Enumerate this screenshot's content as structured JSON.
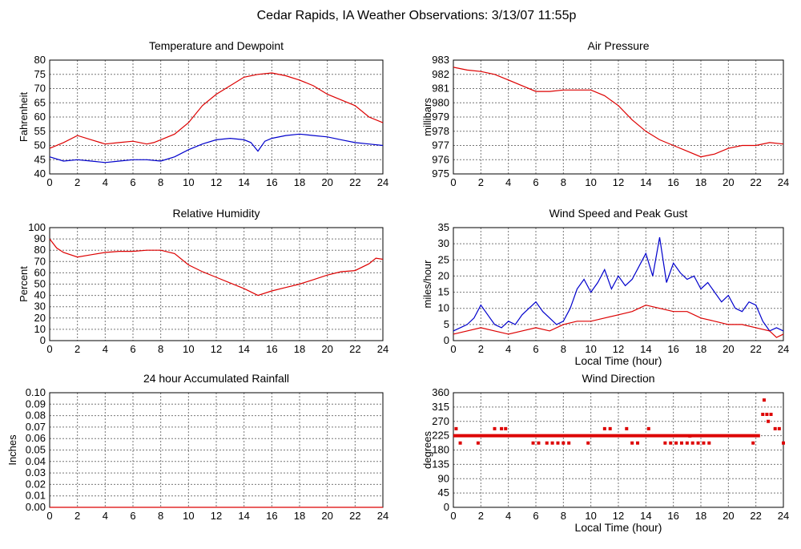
{
  "page_title": "Cedar Rapids, IA Weather Observations: 3/13/07 11:55p",
  "colors": {
    "red": "#dd0000",
    "blue": "#0000cc",
    "grid": "#777777"
  },
  "chart_data": [
    {
      "id": "temp",
      "type": "line",
      "title": "Temperature and Dewpoint",
      "xlabel": "",
      "ylabel": "Fahrenheit",
      "xlim": [
        0,
        24
      ],
      "ylim": [
        40,
        80
      ],
      "xticks": [
        0,
        2,
        4,
        6,
        8,
        10,
        12,
        14,
        16,
        18,
        20,
        22,
        24
      ],
      "yticks": [
        40,
        45,
        50,
        55,
        60,
        65,
        70,
        75,
        80
      ],
      "grid": true,
      "series": [
        {
          "color": "#dd0000",
          "x": [
            0,
            1,
            2,
            3,
            4,
            5,
            6,
            7,
            7.5,
            8,
            9,
            10,
            11,
            12,
            13,
            14,
            15,
            16,
            17,
            18,
            19,
            20,
            21,
            22,
            23,
            24
          ],
          "y": [
            49,
            51,
            53.5,
            52,
            50.5,
            51,
            51.5,
            50.5,
            51,
            52,
            54,
            58,
            64,
            68,
            71,
            74,
            75,
            75.5,
            74.5,
            73,
            71,
            68,
            66,
            64,
            60,
            58
          ]
        },
        {
          "color": "#0000cc",
          "x": [
            0,
            1,
            2,
            3,
            4,
            5,
            6,
            7,
            8,
            9,
            10,
            11,
            12,
            13,
            14,
            14.5,
            15,
            15.5,
            16,
            17,
            18,
            19,
            20,
            21,
            22,
            23,
            24
          ],
          "y": [
            46,
            44.5,
            45,
            44.5,
            44,
            44.5,
            45,
            45,
            44.5,
            46,
            48.5,
            50.5,
            52,
            52.5,
            52,
            51,
            48,
            51.5,
            52.5,
            53.5,
            54,
            53.5,
            53,
            52,
            51,
            50.5,
            50
          ]
        }
      ]
    },
    {
      "id": "pressure",
      "type": "line",
      "title": "Air Pressure",
      "xlabel": "",
      "ylabel": "millibars",
      "xlim": [
        0,
        24
      ],
      "ylim": [
        975,
        983
      ],
      "xticks": [
        0,
        2,
        4,
        6,
        8,
        10,
        12,
        14,
        16,
        18,
        20,
        22,
        24
      ],
      "yticks": [
        975,
        976,
        977,
        978,
        979,
        980,
        981,
        982,
        983
      ],
      "grid": true,
      "series": [
        {
          "color": "#dd0000",
          "x": [
            0,
            1,
            2,
            3,
            4,
            5,
            6,
            7,
            8,
            9,
            10,
            11,
            12,
            13,
            14,
            15,
            16,
            17,
            18,
            19,
            20,
            21,
            22,
            23,
            24
          ],
          "y": [
            982.5,
            982.3,
            982.2,
            982.0,
            981.6,
            981.2,
            980.8,
            980.8,
            980.9,
            980.9,
            980.9,
            980.5,
            979.8,
            978.8,
            978.0,
            977.4,
            977.0,
            976.6,
            976.2,
            976.4,
            976.8,
            977.0,
            977.0,
            977.2,
            977.1
          ]
        }
      ]
    },
    {
      "id": "humidity",
      "type": "line",
      "title": "Relative Humidity",
      "xlabel": "",
      "ylabel": "Percent",
      "xlim": [
        0,
        24
      ],
      "ylim": [
        0,
        100
      ],
      "xticks": [
        0,
        2,
        4,
        6,
        8,
        10,
        12,
        14,
        16,
        18,
        20,
        22,
        24
      ],
      "yticks": [
        0,
        10,
        20,
        30,
        40,
        50,
        60,
        70,
        80,
        90,
        100
      ],
      "grid": true,
      "series": [
        {
          "color": "#dd0000",
          "x": [
            0,
            0.5,
            1,
            2,
            3,
            4,
            5,
            6,
            7,
            8,
            9,
            10,
            11,
            12,
            13,
            14,
            15,
            16,
            17,
            18,
            19,
            20,
            21,
            22,
            23,
            23.5,
            24
          ],
          "y": [
            90,
            82,
            78,
            74,
            76,
            78,
            79,
            79,
            80,
            80,
            77,
            67,
            61,
            56,
            51,
            46,
            40,
            44,
            47,
            50,
            54,
            58,
            61,
            62,
            68,
            73,
            72
          ]
        }
      ]
    },
    {
      "id": "wind",
      "type": "line",
      "title": "Wind Speed and Peak Gust",
      "xlabel": "Local Time (hour)",
      "ylabel": "miles/hour",
      "xlim": [
        0,
        24
      ],
      "ylim": [
        0,
        35
      ],
      "xticks": [
        0,
        2,
        4,
        6,
        8,
        10,
        12,
        14,
        16,
        18,
        20,
        22,
        24
      ],
      "yticks": [
        0,
        5,
        10,
        15,
        20,
        25,
        30,
        35
      ],
      "grid": true,
      "series": [
        {
          "color": "#0000cc",
          "x": [
            0,
            0.5,
            1,
            1.5,
            2,
            2.5,
            3,
            3.5,
            4,
            4.5,
            5,
            5.5,
            6,
            6.5,
            7,
            7.5,
            8,
            8.5,
            9,
            9.5,
            10,
            10.5,
            11,
            11.5,
            12,
            12.5,
            13,
            13.5,
            14,
            14.5,
            15,
            15.5,
            16,
            16.5,
            17,
            17.5,
            18,
            18.5,
            19,
            19.5,
            20,
            20.5,
            21,
            21.5,
            22,
            22.5,
            23,
            23.5,
            24
          ],
          "y": [
            3,
            4,
            5,
            7,
            11,
            8,
            5,
            4,
            6,
            5,
            8,
            10,
            12,
            9,
            7,
            5,
            6,
            10,
            16,
            19,
            15,
            18,
            22,
            16,
            20,
            17,
            19,
            23,
            27,
            20,
            32,
            18,
            24,
            21,
            19,
            20,
            16,
            18,
            15,
            12,
            14,
            10,
            9,
            12,
            11,
            6,
            3,
            4,
            3
          ]
        },
        {
          "color": "#dd0000",
          "x": [
            0,
            1,
            2,
            3,
            4,
            5,
            6,
            7,
            8,
            9,
            10,
            11,
            12,
            13,
            14,
            15,
            16,
            17,
            18,
            19,
            20,
            21,
            22,
            23,
            23.5,
            24
          ],
          "y": [
            2,
            3,
            4,
            3,
            2,
            3,
            4,
            3,
            5,
            6,
            6,
            7,
            8,
            9,
            11,
            10,
            9,
            9,
            7,
            6,
            5,
            5,
            4,
            3,
            1,
            2
          ]
        }
      ]
    },
    {
      "id": "rain",
      "type": "line",
      "title": "24 hour Accumulated Rainfall",
      "xlabel": "",
      "ylabel": "Inches",
      "xlim": [
        0,
        24
      ],
      "ylim": [
        0,
        0.1
      ],
      "xticks": [
        0,
        2,
        4,
        6,
        8,
        10,
        12,
        14,
        16,
        18,
        20,
        22,
        24
      ],
      "yticks": [
        0,
        0.01,
        0.02,
        0.03,
        0.04,
        0.05,
        0.06,
        0.07,
        0.08,
        0.09,
        0.1
      ],
      "yticklabels": [
        "0.00",
        "0.01",
        "0.02",
        "0.03",
        "0.04",
        "0.05",
        "0.06",
        "0.07",
        "0.08",
        "0.09",
        "0.10"
      ],
      "grid": true,
      "series": [
        {
          "color": "#dd0000",
          "x": [
            0,
            24
          ],
          "y": [
            0,
            0
          ]
        }
      ]
    },
    {
      "id": "direction",
      "type": "scatter",
      "title": "Wind Direction",
      "xlabel": "Local Time (hour)",
      "ylabel": "degrees",
      "xlim": [
        0,
        24
      ],
      "ylim": [
        0,
        360
      ],
      "xticks": [
        0,
        2,
        4,
        6,
        8,
        10,
        12,
        14,
        16,
        18,
        20,
        22,
        24
      ],
      "yticks": [
        0,
        45,
        90,
        135,
        180,
        225,
        270,
        315,
        360
      ],
      "grid": true,
      "series": [
        {
          "color": "#dd0000",
          "x": [
            0.5,
            1.8,
            3.0,
            3.5,
            3.8,
            5.8,
            6.2,
            6.8,
            7.2,
            7.6,
            8.0,
            8.4,
            9.8,
            11.0,
            11.4,
            12.6,
            13.0,
            13.4,
            15.4,
            15.8,
            16.2,
            16.6,
            17.0,
            17.4,
            17.8,
            18.2,
            18.6,
            21.8,
            22.5,
            22.8,
            23.1,
            23.4,
            23.7,
            24.0,
            22.6,
            22.9,
            0.2,
            14.2,
            17.2
          ],
          "y": [
            202,
            202,
            247,
            247,
            247,
            202,
            202,
            202,
            202,
            202,
            202,
            202,
            202,
            247,
            247,
            247,
            202,
            202,
            202,
            202,
            202,
            202,
            202,
            202,
            202,
            202,
            202,
            202,
            292,
            292,
            292,
            247,
            247,
            202,
            337,
            270,
            247,
            247,
            224
          ]
        },
        {
          "color": "#dd0000",
          "type": "band",
          "x": [
            0,
            22.3
          ],
          "y": [
            225,
            225
          ]
        }
      ]
    }
  ]
}
